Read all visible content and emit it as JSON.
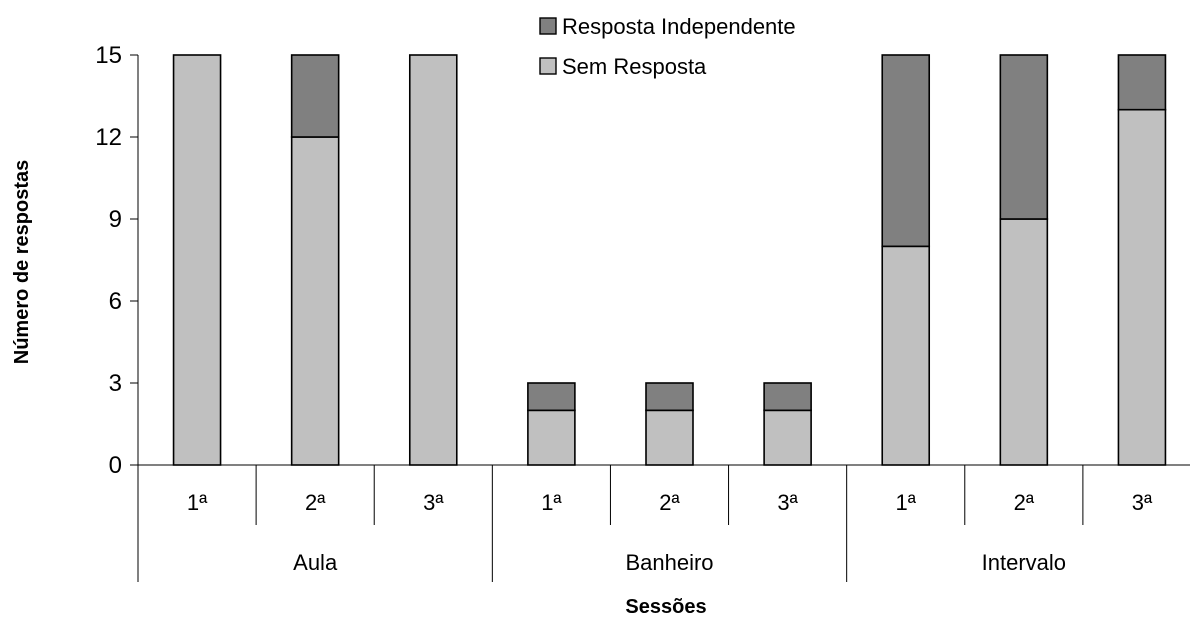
{
  "chart_data": {
    "type": "bar",
    "stacked": true,
    "categories": [
      "1ª",
      "2ª",
      "3ª",
      "1ª",
      "2ª",
      "3ª",
      "1ª",
      "2ª",
      "3ª"
    ],
    "groups": [
      {
        "label": "Aula",
        "count": 3
      },
      {
        "label": "Banheiro",
        "count": 3
      },
      {
        "label": "Intervalo",
        "count": 3
      }
    ],
    "series": [
      {
        "name": "Sem Resposta",
        "color": "#c0c0c0",
        "values": [
          15,
          12,
          15,
          2,
          2,
          2,
          8,
          9,
          13
        ]
      },
      {
        "name": "Resposta Independente",
        "color": "#808080",
        "values": [
          0,
          3,
          0,
          1,
          1,
          1,
          7,
          6,
          2
        ]
      }
    ],
    "legend_order": [
      1,
      0
    ],
    "legend_position": "top-center",
    "xlabel": "Sessões",
    "ylabel": "Número de respostas",
    "ylim": [
      0,
      15
    ],
    "yticks": [
      0,
      3,
      6,
      9,
      12,
      15
    ],
    "grid": false
  }
}
